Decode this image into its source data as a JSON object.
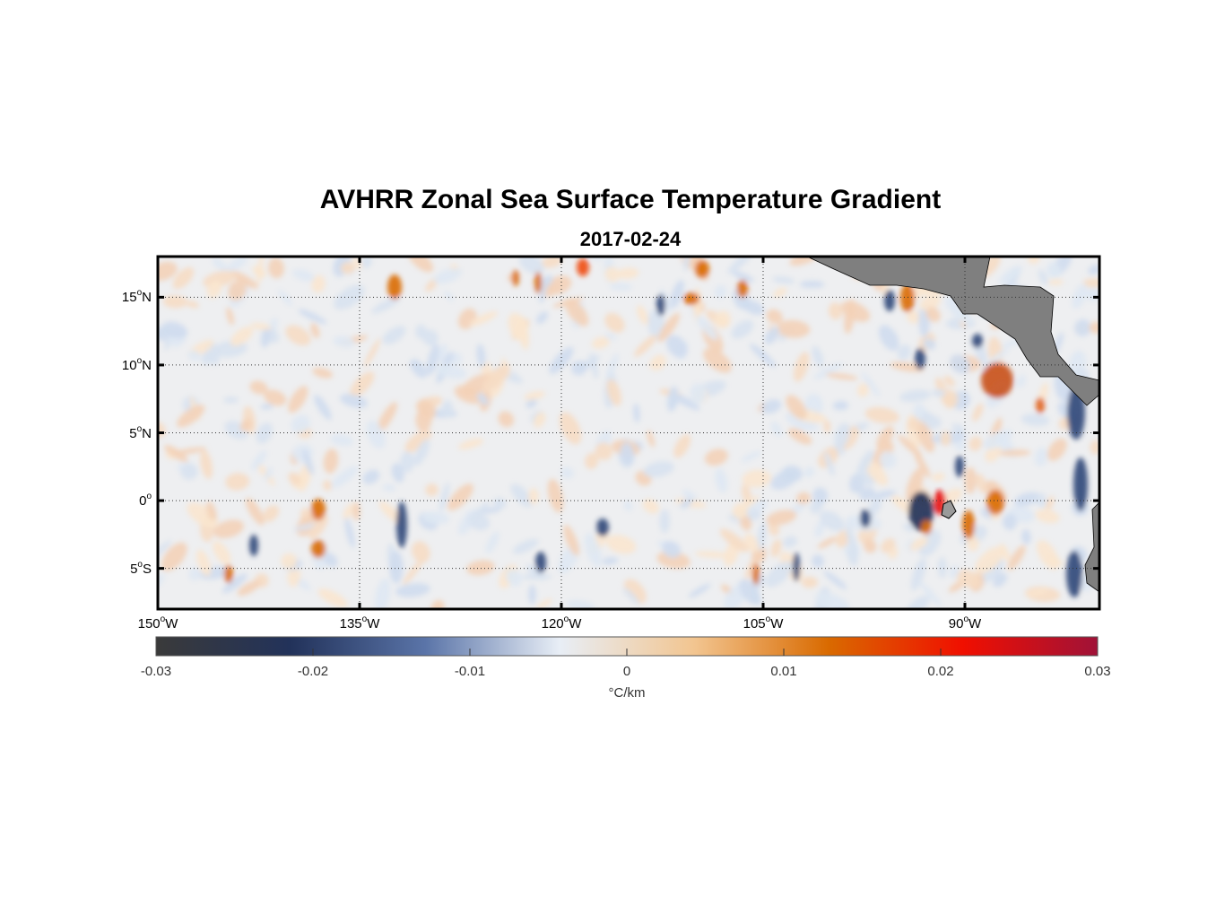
{
  "title": "AVHRR Zonal Sea Surface Temperature Gradient",
  "subtitle": "2017-02-24",
  "map": {
    "extent": {
      "lon": [
        -150,
        -80
      ],
      "lat": [
        -8,
        18
      ]
    },
    "grid_lines": "dotted",
    "land_color": "#7f7f7f",
    "lat_ticks": [
      {
        "value": 15,
        "num": "15",
        "hem": "N"
      },
      {
        "value": 10,
        "num": "10",
        "hem": "N"
      },
      {
        "value": 5,
        "num": "5",
        "hem": "N"
      },
      {
        "value": 0,
        "num": "0",
        "hem": ""
      },
      {
        "value": -5,
        "num": "5",
        "hem": "S"
      }
    ],
    "lon_ticks": [
      {
        "value": -150,
        "num": "150",
        "hem": "W"
      },
      {
        "value": -135,
        "num": "135",
        "hem": "W"
      },
      {
        "value": -120,
        "num": "120",
        "hem": "W"
      },
      {
        "value": -105,
        "num": "105",
        "hem": "W"
      },
      {
        "value": -90,
        "num": "90",
        "hem": "W"
      }
    ]
  },
  "colorbar": {
    "ticks": [
      "-0.03",
      "-0.02",
      "-0.01",
      "0",
      "0.01",
      "0.02",
      "0.03"
    ],
    "unit": "°C/km",
    "colors": [
      "#3a3a3a",
      "#22325a",
      "#5a74a8",
      "#e8eef6",
      "#f2c590",
      "#d96a00",
      "#f00f00",
      "#a01238"
    ]
  }
}
